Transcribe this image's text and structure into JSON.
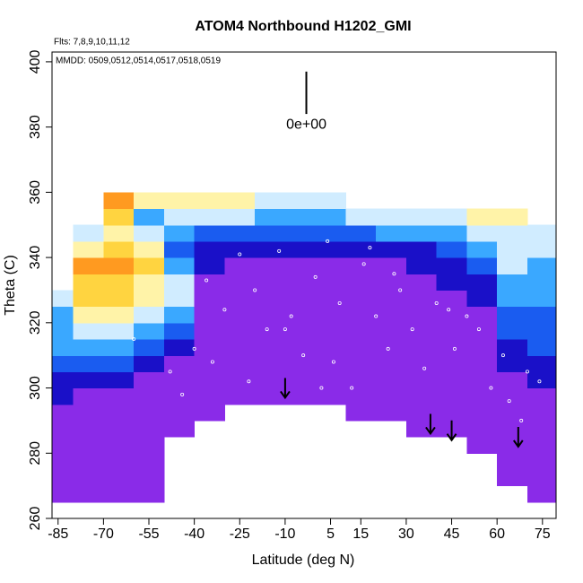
{
  "chart_data": {
    "type": "heatmap",
    "title": "ATOM4 Northbound H1202_GMI",
    "subtitle": "Flts: 7,8,9,10,11,12",
    "annotation": "MMDD: 0509,0512,0514,0517,0518,0519",
    "xlabel": "Latitude (deg N)",
    "ylabel": "Theta (C)",
    "xlim": [
      -87,
      79.5
    ],
    "ylim": [
      260,
      403
    ],
    "xticks": [
      -85,
      -70,
      -55,
      -40,
      -25,
      -10,
      5,
      15,
      30,
      45,
      60,
      75
    ],
    "yticks": [
      260,
      280,
      300,
      320,
      340,
      360,
      380,
      400
    ],
    "x": [
      -85,
      -75,
      -65,
      -55,
      -45,
      -35,
      -25,
      -15,
      -5,
      5,
      15,
      25,
      35,
      45,
      55,
      65,
      75
    ],
    "y": [
      262.5,
      267.5,
      272.5,
      277.5,
      282.5,
      287.5,
      292.5,
      297.5,
      302.5,
      307.5,
      312.5,
      317.5,
      322.5,
      327.5,
      332.5,
      337.5,
      342.5,
      347.5,
      352.5,
      357.5
    ],
    "colors": [
      "#8a2be8",
      "#1a10c8",
      "#1a5cf0",
      "#3aa8ff",
      "#d0ecff",
      "#fff3a8",
      "#ffd440",
      "#ff9a20",
      "#e0301a"
    ],
    "z": [
      [
        null,
        0,
        0,
        0,
        0,
        0,
        0,
        1,
        1,
        2,
        3,
        3,
        3,
        4,
        null,
        null,
        null,
        null,
        null,
        null
      ],
      [
        null,
        0,
        0,
        0,
        0,
        0,
        0,
        0,
        1,
        2,
        3,
        4,
        5,
        6,
        6,
        7,
        5,
        4,
        null,
        null
      ],
      [
        null,
        0,
        0,
        0,
        0,
        0,
        0,
        0,
        1,
        2,
        3,
        4,
        5,
        6,
        6,
        7,
        6,
        5,
        6,
        7
      ],
      [
        null,
        0,
        0,
        0,
        0,
        0,
        0,
        0,
        0,
        1,
        2,
        3,
        4,
        5,
        5,
        6,
        5,
        4,
        3,
        5
      ],
      [
        null,
        null,
        null,
        null,
        null,
        0,
        0,
        0,
        0,
        0,
        1,
        2,
        3,
        4,
        4,
        3,
        2,
        3,
        4,
        5
      ],
      [
        null,
        null,
        null,
        null,
        null,
        null,
        0,
        0,
        0,
        0,
        0,
        0,
        0,
        0,
        0,
        1,
        1,
        2,
        4,
        5
      ],
      [
        null,
        null,
        null,
        null,
        null,
        null,
        null,
        0,
        0,
        0,
        0,
        0,
        0,
        0,
        0,
        0,
        1,
        2,
        4,
        5
      ],
      [
        null,
        null,
        null,
        null,
        null,
        null,
        null,
        0,
        0,
        0,
        0,
        0,
        0,
        0,
        0,
        0,
        1,
        2,
        3,
        4
      ],
      [
        null,
        null,
        null,
        null,
        null,
        null,
        null,
        0,
        0,
        0,
        0,
        0,
        0,
        0,
        0,
        0,
        1,
        2,
        3,
        4
      ],
      [
        null,
        null,
        null,
        null,
        null,
        null,
        null,
        0,
        0,
        0,
        0,
        0,
        0,
        0,
        0,
        0,
        1,
        2,
        3,
        4
      ],
      [
        null,
        null,
        null,
        null,
        null,
        null,
        0,
        0,
        0,
        0,
        0,
        0,
        0,
        0,
        0,
        0,
        1,
        2,
        4,
        null
      ],
      [
        null,
        null,
        null,
        null,
        null,
        null,
        0,
        0,
        0,
        0,
        0,
        0,
        0,
        0,
        0,
        0,
        1,
        3,
        4,
        null
      ],
      [
        null,
        null,
        null,
        null,
        null,
        0,
        0,
        0,
        0,
        0,
        0,
        0,
        0,
        0,
        0,
        1,
        1,
        3,
        4,
        null
      ],
      [
        null,
        null,
        null,
        null,
        null,
        0,
        0,
        0,
        0,
        0,
        0,
        0,
        0,
        0,
        1,
        1,
        2,
        3,
        4,
        null
      ],
      [
        null,
        null,
        null,
        null,
        0,
        0,
        0,
        0,
        0,
        0,
        0,
        0,
        0,
        1,
        1,
        2,
        3,
        4,
        5,
        null
      ],
      [
        null,
        null,
        0,
        0,
        0,
        0,
        0,
        0,
        0,
        1,
        1,
        2,
        2,
        3,
        3,
        4,
        4,
        4,
        5,
        null
      ],
      [
        null,
        0,
        0,
        0,
        0,
        0,
        0,
        0,
        1,
        1,
        2,
        2,
        2,
        3,
        3,
        3,
        4,
        4,
        null,
        null
      ]
    ],
    "points": {
      "x": [
        -60,
        -48,
        -44,
        -40,
        -36,
        -30,
        -25,
        -20,
        -16,
        -12,
        -8,
        -4,
        0,
        4,
        8,
        12,
        16,
        20,
        24,
        28,
        -22,
        -10,
        6,
        18,
        32,
        36,
        40,
        44,
        50,
        54,
        58,
        62,
        64,
        68,
        70,
        74,
        -34,
        2,
        26,
        46
      ],
      "y": [
        315,
        305,
        298,
        312,
        333,
        324,
        341,
        330,
        318,
        342,
        322,
        310,
        334,
        345,
        326,
        300,
        338,
        322,
        312,
        330,
        302,
        318,
        308,
        343,
        318,
        306,
        326,
        324,
        322,
        318,
        300,
        310,
        296,
        290,
        305,
        302,
        308,
        300,
        335,
        312
      ]
    },
    "arrows": {
      "x": [
        -10,
        38,
        45,
        67
      ],
      "y": [
        297,
        286,
        284,
        282
      ]
    },
    "scale_bar": {
      "x": -3,
      "y": [
        384,
        397
      ],
      "label": "0e+00"
    }
  }
}
